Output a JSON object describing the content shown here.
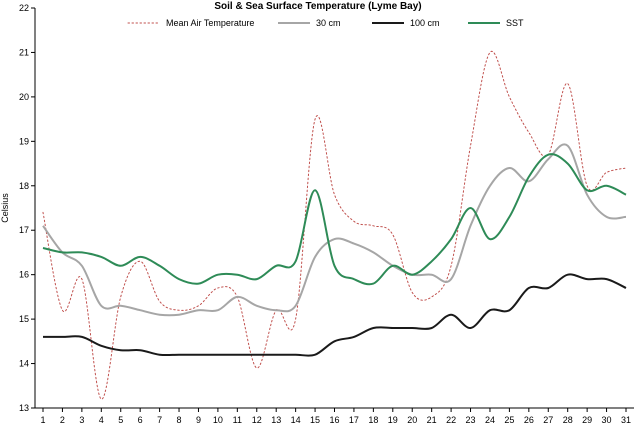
{
  "chart_data": {
    "type": "line",
    "title": "Soil & Sea Surface Temperature (Lyme Bay)",
    "xlabel": "",
    "ylabel": "Celsius",
    "x": [
      1,
      2,
      3,
      4,
      5,
      6,
      7,
      8,
      9,
      10,
      11,
      12,
      13,
      14,
      15,
      16,
      17,
      18,
      19,
      20,
      21,
      22,
      23,
      24,
      25,
      26,
      27,
      28,
      29,
      30,
      31
    ],
    "ylim": [
      13,
      22
    ],
    "yticks": [
      13,
      14,
      15,
      16,
      17,
      18,
      19,
      20,
      21,
      22
    ],
    "grid": false,
    "legend_position": "top",
    "series": [
      {
        "name": "Mean Air Temperature",
        "color": "#c0504d",
        "style": "dotted",
        "values": [
          17.4,
          15.2,
          15.9,
          13.2,
          15.5,
          16.3,
          15.4,
          15.2,
          15.3,
          15.7,
          15.5,
          13.9,
          15.2,
          15.0,
          19.5,
          17.8,
          17.2,
          17.1,
          16.9,
          15.6,
          15.5,
          16.2,
          18.9,
          21.0,
          20.0,
          19.2,
          18.7,
          20.3,
          18.0,
          18.3,
          18.4
        ]
      },
      {
        "name": "30 cm",
        "color": "#a6a6a6",
        "style": "solid",
        "values": [
          17.1,
          16.5,
          16.2,
          15.3,
          15.3,
          15.2,
          15.1,
          15.1,
          15.2,
          15.2,
          15.5,
          15.3,
          15.2,
          15.3,
          16.4,
          16.8,
          16.7,
          16.5,
          16.2,
          16.0,
          16.0,
          15.9,
          17.1,
          18.0,
          18.4,
          18.1,
          18.6,
          18.9,
          17.8,
          17.3,
          17.3
        ]
      },
      {
        "name": "100 cm",
        "color": "#1a1a1a",
        "style": "solid",
        "values": [
          14.6,
          14.6,
          14.6,
          14.4,
          14.3,
          14.3,
          14.2,
          14.2,
          14.2,
          14.2,
          14.2,
          14.2,
          14.2,
          14.2,
          14.2,
          14.5,
          14.6,
          14.8,
          14.8,
          14.8,
          14.8,
          15.1,
          14.8,
          15.2,
          15.2,
          15.7,
          15.7,
          16.0,
          15.9,
          15.9,
          15.7
        ]
      },
      {
        "name": "SST",
        "color": "#2e8b57",
        "style": "solid",
        "values": [
          16.6,
          16.5,
          16.5,
          16.4,
          16.2,
          16.4,
          16.2,
          15.9,
          15.8,
          16.0,
          16.0,
          15.9,
          16.2,
          16.3,
          17.9,
          16.2,
          15.9,
          15.8,
          16.2,
          16.0,
          16.3,
          16.8,
          17.5,
          16.8,
          17.3,
          18.2,
          18.7,
          18.5,
          17.9,
          18.0,
          17.8
        ]
      }
    ]
  }
}
